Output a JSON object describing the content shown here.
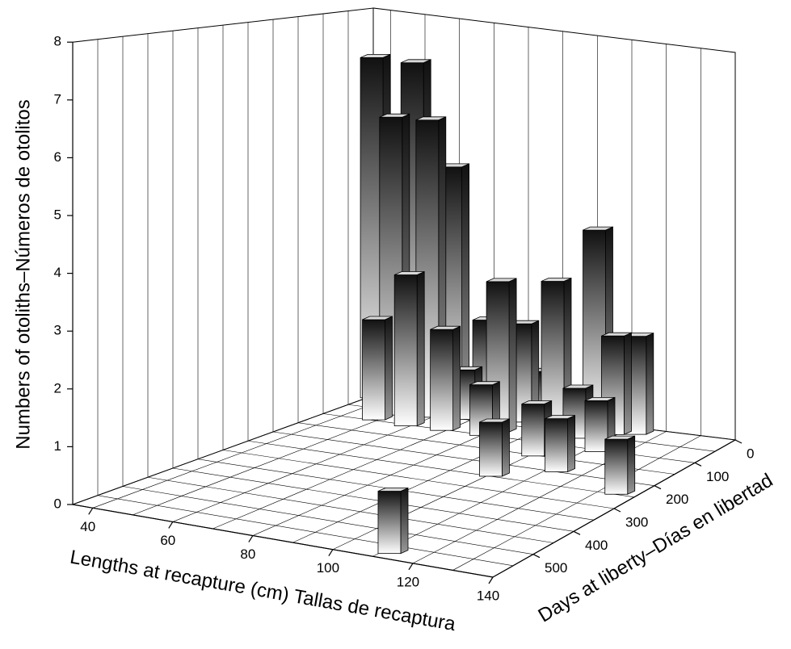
{
  "chart_data": {
    "type": "bar3d",
    "xlabel": "Lengths at recapture (cm) Tallas de recaptura",
    "ylabel": "Days at liberty–Días en libertad",
    "zlabel": "Numbers of otoliths–Números de otolitos",
    "x": [
      36,
      48,
      50,
      59,
      61,
      49,
      59,
      69,
      68,
      72,
      80,
      82,
      101,
      82,
      85,
      101,
      93,
      113,
      102,
      100,
      113,
      109,
      114,
      135,
      112
    ],
    "y": [
      10,
      12,
      70,
      60,
      26,
      98,
      105,
      104,
      50,
      36,
      103,
      82,
      250,
      33,
      18,
      154,
      46,
      200,
      68,
      7,
      107,
      36,
      25,
      249,
      580
    ],
    "values": [
      7,
      7,
      6,
      6,
      5,
      2,
      3,
      2,
      1,
      2,
      1,
      3,
      1,
      2,
      1,
      1,
      3,
      1,
      1,
      4,
      1,
      2,
      2,
      1,
      1
    ],
    "color": "#111111",
    "xlim": [
      35,
      140
    ],
    "xticks": [
      40,
      60,
      80,
      100,
      120,
      140
    ],
    "ylim": [
      0,
      600
    ],
    "yticks": [
      0,
      100,
      200,
      300,
      400,
      500
    ],
    "zlim": [
      0,
      8
    ],
    "zticks": [
      0,
      1,
      2,
      3,
      4,
      5,
      6,
      7,
      8
    ],
    "grid": true
  }
}
